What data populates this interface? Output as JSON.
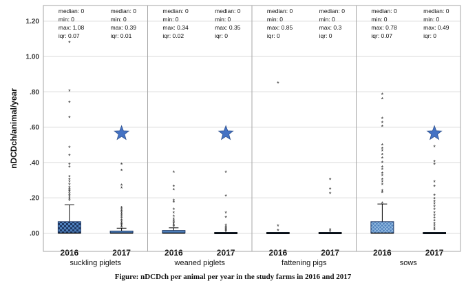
{
  "caption": "Figure: nDCDch per animal per year in the study farms in 2016 and 2017",
  "colors": {
    "box_fill": "#4f81bd",
    "box_stroke": "#1f3864",
    "star": "#4472c4",
    "grid": "#d9d9d9",
    "divider": "#a6a6a6"
  },
  "chart_data": {
    "type": "box",
    "ylabel": "nDCDch/animal/year",
    "ylim": [
      -0.05,
      1.24
    ],
    "yticks": [
      0.0,
      0.2,
      0.4,
      0.6,
      0.8,
      1.0,
      1.2
    ],
    "ytick_labels": [
      ".00",
      ".20",
      ".40",
      ".60",
      ".80",
      "1.00",
      "1.20"
    ],
    "grid": "horizontal",
    "groups": [
      {
        "name": "suckling piglets",
        "boxes": [
          {
            "category": "2016",
            "median": 0,
            "q1": 0,
            "q3": 0.065,
            "whisker_low": 0,
            "whisker_high": 0.16,
            "fill": "checkered",
            "stats": [
              "median: 0",
              "min: 0",
              "max: 1.08",
              "iqr: 0.07"
            ],
            "outliers": [
              1.08,
              0.805,
              0.74,
              0.655,
              0.485,
              0.44,
              0.39,
              0.375,
              0.32,
              0.305,
              0.29,
              0.275,
              0.26,
              0.25,
              0.24,
              0.235,
              0.225,
              0.215,
              0.205,
              0.195,
              0.185
            ]
          },
          {
            "category": "2017",
            "median": 0,
            "q1": 0,
            "q3": 0.012,
            "whisker_low": 0,
            "whisker_high": 0.028,
            "fill": "plain",
            "stats": [
              "median: 0",
              "min: 0",
              "max: 0.39",
              "iqr: 0.01"
            ],
            "outliers": [
              0.39,
              0.355,
              0.27,
              0.255,
              0.145,
              0.135,
              0.125,
              0.115,
              0.105,
              0.095,
              0.085,
              0.075,
              0.065,
              0.055,
              0.048,
              0.04,
              0.034
            ],
            "star_value": 0.565
          }
        ]
      },
      {
        "name": "weaned piglets",
        "boxes": [
          {
            "category": "2016",
            "median": 0,
            "q1": 0,
            "q3": 0.015,
            "whisker_low": 0,
            "whisker_high": 0.03,
            "fill": "plain",
            "stats": [
              "median: 0",
              "min: 0",
              "max: 0.34",
              "iqr: 0.02"
            ],
            "outliers": [
              0.345,
              0.265,
              0.245,
              0.185,
              0.175,
              0.135,
              0.115,
              0.095,
              0.08,
              0.07,
              0.06,
              0.052,
              0.045,
              0.038
            ]
          },
          {
            "category": "2017",
            "median": 0,
            "q1": 0,
            "q3": 0,
            "whisker_low": 0,
            "whisker_high": 0,
            "fill": "plain",
            "stats": [
              "median: 0",
              "min: 0",
              "max: 0.35",
              "iqr: 0"
            ],
            "outliers": [
              0.345,
              0.21,
              0.115,
              0.09,
              0.045,
              0.035,
              0.028,
              0.022,
              0.016,
              0.01
            ],
            "star_value": 0.565
          }
        ]
      },
      {
        "name": "fattening pigs",
        "boxes": [
          {
            "category": "2016",
            "median": 0,
            "q1": 0,
            "q3": 0,
            "whisker_low": 0,
            "whisker_high": 0,
            "fill": "plain",
            "stats": [
              "median: 0",
              "min: 0",
              "max: 0.85",
              "iqr: 0"
            ],
            "outliers": [
              0.85,
              0.04,
              0.015
            ]
          },
          {
            "category": "2017",
            "median": 0,
            "q1": 0,
            "q3": 0,
            "whisker_low": 0,
            "whisker_high": 0,
            "fill": "plain",
            "stats": [
              "median: 0",
              "min: 0",
              "max: 0.3",
              "iqr: 0"
            ],
            "outliers": [
              0.305,
              0.25,
              0.225,
              0.02,
              0.01
            ]
          }
        ]
      },
      {
        "name": "sows",
        "boxes": [
          {
            "category": "2016",
            "median": 0,
            "q1": 0,
            "q3": 0.065,
            "whisker_low": 0,
            "whisker_high": 0.165,
            "fill": "crosshatch",
            "stats": [
              "median: 0",
              "min: 0",
              "max: 0.78",
              "iqr: 0.07"
            ],
            "outliers": [
              0.785,
              0.76,
              0.65,
              0.625,
              0.605,
              0.5,
              0.48,
              0.465,
              0.445,
              0.425,
              0.4,
              0.375,
              0.36,
              0.34,
              0.325,
              0.305,
              0.29,
              0.275,
              0.24,
              0.23,
              0.17
            ]
          },
          {
            "category": "2017",
            "median": 0,
            "q1": 0,
            "q3": 0,
            "whisker_low": 0,
            "whisker_high": 0,
            "fill": "plain",
            "stats": [
              "median: 0",
              "min: 0",
              "max: 0.49",
              "iqr: 0"
            ],
            "outliers": [
              0.49,
              0.405,
              0.39,
              0.29,
              0.265,
              0.215,
              0.195,
              0.18,
              0.165,
              0.15,
              0.135,
              0.115,
              0.1,
              0.085,
              0.07,
              0.055,
              0.042,
              0.03,
              0.02
            ],
            "star_value": 0.565
          }
        ]
      }
    ]
  }
}
